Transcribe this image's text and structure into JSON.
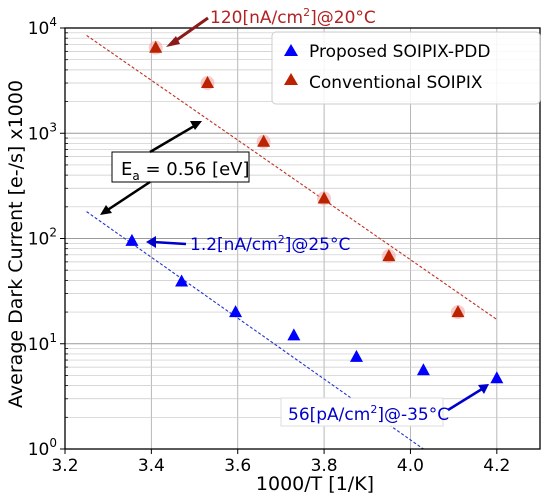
{
  "chart_data": {
    "type": "scatter",
    "title": "",
    "xlabel": "1000/T [1/K]",
    "ylabel": "Average Dark Current [e-/s] x1000",
    "xlim": [
      3.2,
      4.3
    ],
    "ylim": [
      1,
      10000
    ],
    "yscale": "log",
    "grid": true,
    "legend_position": "top-right",
    "x_ticks": [
      "3.2",
      "3.4",
      "3.6",
      "3.8",
      "4.0",
      "4.2"
    ],
    "y_ticks": [
      {
        "value": 1,
        "base": "10",
        "exp": "0"
      },
      {
        "value": 10,
        "base": "10",
        "exp": "1"
      },
      {
        "value": 100,
        "base": "10",
        "exp": "2"
      },
      {
        "value": 1000,
        "base": "10",
        "exp": "3"
      },
      {
        "value": 10000,
        "base": "10",
        "exp": "4"
      }
    ],
    "series": [
      {
        "name": "Proposed SOIPIX-PDD",
        "marker": "triangle",
        "color": "#0000ff",
        "x": [
          3.355,
          3.47,
          3.595,
          3.73,
          3.875,
          4.03,
          4.2
        ],
        "y": [
          95,
          39,
          20,
          12,
          7.5,
          5.6,
          4.7
        ],
        "fit": {
          "x": [
            3.25,
            4.03
          ],
          "y": [
            180,
            1.0
          ],
          "color": "#2233cc"
        }
      },
      {
        "name": "Conventional SOIPIX",
        "marker": "triangle",
        "color": "#bb2200",
        "x": [
          3.41,
          3.53,
          3.66,
          3.8,
          3.95,
          4.11
        ],
        "y": [
          6500,
          3000,
          830,
          240,
          68,
          20
        ],
        "fit": {
          "x": [
            3.25,
            4.2
          ],
          "y": [
            8500,
            17
          ],
          "color": "#c03020"
        }
      }
    ],
    "annotations": {
      "top": {
        "main": "120[nA/cm",
        "sup": "2",
        "tail": "]@20°C",
        "color": "#b22222"
      },
      "mid": {
        "main": "1.2[nA/cm",
        "sup": "2",
        "tail": "]@25°C",
        "color": "#0000cc"
      },
      "bottom": {
        "main": "56[pA/cm",
        "sup": "2",
        "tail": "]@-35°C",
        "color": "#0000cc"
      },
      "ea": {
        "pre": "E",
        "sub": "a",
        "post": " = 0.56 [eV]"
      }
    }
  }
}
